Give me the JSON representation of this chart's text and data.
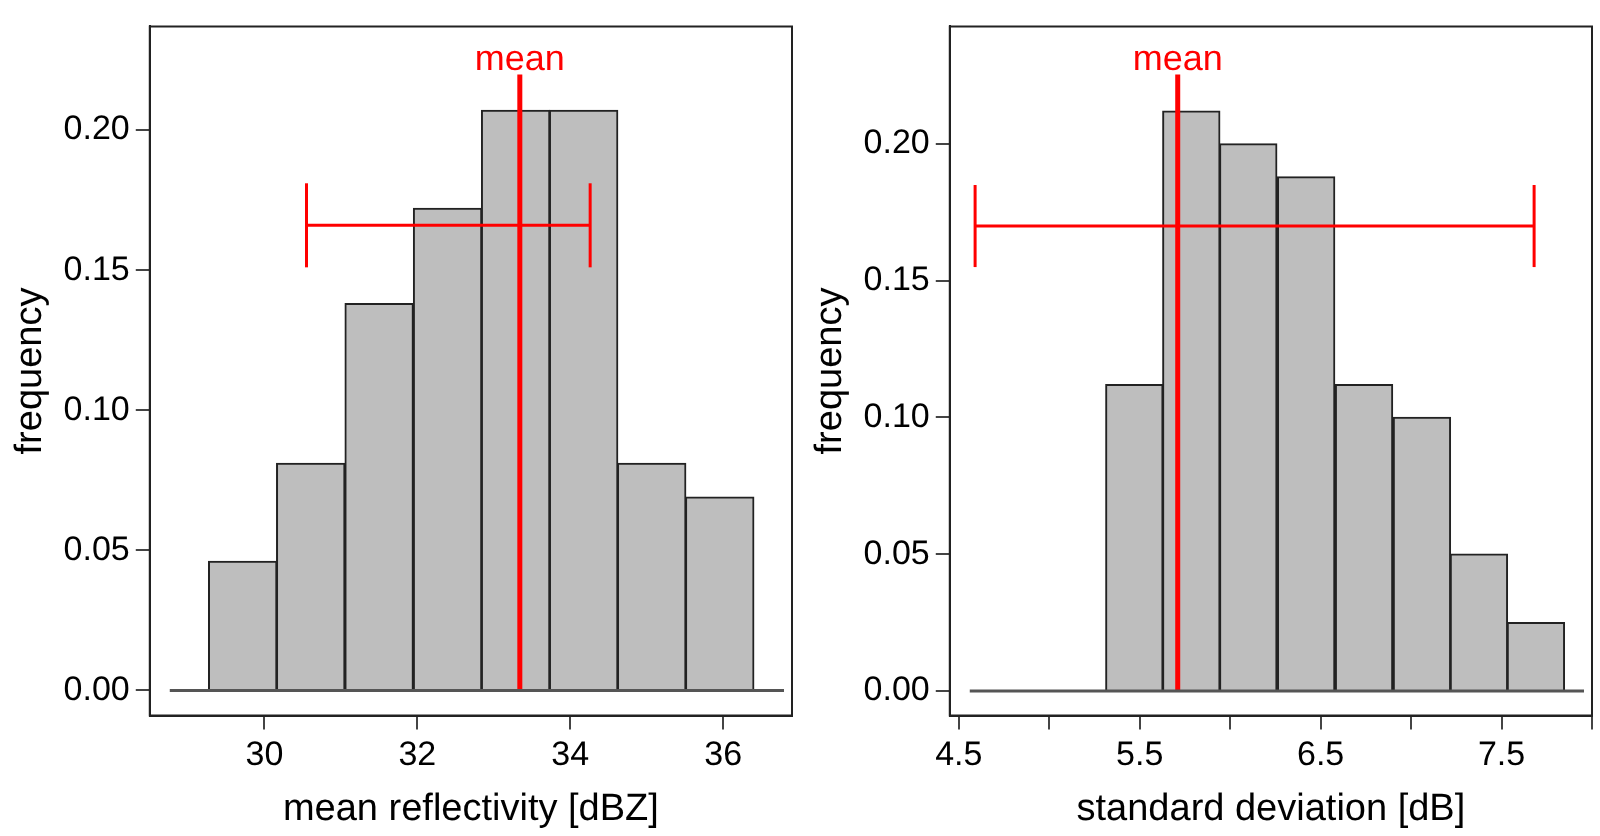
{
  "chart_data": [
    {
      "type": "histogram",
      "xlabel": "mean reflectivity [dBZ]",
      "ylabel": "frequency",
      "bins": [
        29.27,
        30.16,
        31.05,
        31.95,
        32.84,
        33.73,
        34.62,
        35.51,
        36.4
      ],
      "values": [
        0.046,
        0.081,
        0.138,
        0.172,
        0.207,
        0.207,
        0.081,
        0.069
      ],
      "color": "#bebebe",
      "xlim": [
        28.5,
        36.9
      ],
      "ylim": [
        -0.009,
        0.237
      ],
      "xticks": [
        30,
        32,
        34,
        36
      ],
      "yticks": [
        {
          "value": 0,
          "label": "0.00"
        },
        {
          "value": 0.05,
          "label": "0.05"
        },
        {
          "value": 0.1,
          "label": "0.10"
        },
        {
          "value": 0.15,
          "label": "0.15"
        },
        {
          "value": 0.2,
          "label": "0.20"
        }
      ],
      "grid": false,
      "marker": "none",
      "series": [
        {
          "type": "line",
          "x": [
            30.55,
            34.26
          ],
          "values": [
            0.166,
            0.166
          ],
          "errors": [
            0.015,
            0.015
          ],
          "color": "#ff0000"
        }
      ],
      "ref_lines": [
        {
          "axis": "x",
          "value": 33.34,
          "label": "mean",
          "color": "#ff0000"
        },
        {
          "axis": "y",
          "value": 0,
          "color": "#555555"
        }
      ]
    },
    {
      "type": "histogram",
      "xlabel": "standard deviation [dB]",
      "ylabel": "frequency",
      "bins": [
        5.31,
        5.63,
        5.94,
        6.26,
        6.58,
        6.9,
        7.22,
        7.53,
        7.85
      ],
      "values": [
        0.112,
        0.212,
        0.2,
        0.188,
        0.112,
        0.1,
        0.05,
        0.025
      ],
      "color": "#bebebe",
      "xlim": [
        4.45,
        8
      ],
      "ylim": [
        -0.009,
        0.243
      ],
      "xticks": [
        4.5,
        {
          "value": 5,
          "label": null
        },
        5.5,
        {
          "value": 6,
          "label": null
        },
        6.5,
        {
          "value": 7,
          "label": null
        },
        7.5,
        {
          "value": 8,
          "label": null
        }
      ],
      "yticks": [
        {
          "value": 0,
          "label": "0.00"
        },
        {
          "value": 0.05,
          "label": "0.05"
        },
        {
          "value": 0.1,
          "label": "0.10"
        },
        {
          "value": 0.15,
          "label": "0.15"
        },
        {
          "value": 0.2,
          "label": "0.20"
        }
      ],
      "grid": false,
      "marker": "none",
      "series": [
        {
          "type": "line",
          "x": [
            4.59,
            7.68
          ],
          "values": [
            0.17,
            0.17
          ],
          "errors": [
            0.015,
            0.015
          ],
          "color": "#ff0000"
        }
      ],
      "ref_lines": [
        {
          "axis": "x",
          "value": 5.71,
          "label": "mean",
          "color": "#ff0000"
        },
        {
          "axis": "y",
          "value": 0,
          "color": "#555555"
        }
      ]
    }
  ]
}
